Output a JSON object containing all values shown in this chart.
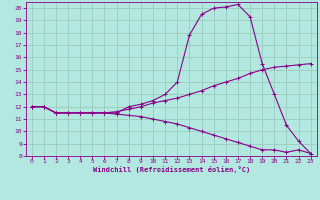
{
  "xlabel": "Windchill (Refroidissement éolien,°C)",
  "bg_color": "#b3e8e0",
  "line_color": "#880088",
  "grid_color": "#99ccbb",
  "xlim": [
    -0.5,
    23.5
  ],
  "ylim": [
    8,
    20.5
  ],
  "xticks": [
    0,
    1,
    2,
    3,
    4,
    5,
    6,
    7,
    8,
    9,
    10,
    11,
    12,
    13,
    14,
    15,
    16,
    17,
    18,
    19,
    20,
    21,
    22,
    23
  ],
  "yticks": [
    8,
    9,
    10,
    11,
    12,
    13,
    14,
    15,
    16,
    17,
    18,
    19,
    20
  ],
  "line1_x": [
    0,
    1,
    2,
    3,
    4,
    5,
    6,
    7,
    8,
    9,
    10,
    11,
    12,
    13,
    14,
    15,
    16,
    17,
    18,
    19,
    20,
    21,
    22,
    23
  ],
  "line1_y": [
    12,
    12,
    11.5,
    11.5,
    11.5,
    11.5,
    11.5,
    11.5,
    12,
    12.2,
    12.5,
    13,
    14,
    17.8,
    19.5,
    20,
    20.1,
    20.3,
    19.3,
    15.5,
    13.0,
    10.5,
    9.2,
    8.2
  ],
  "line2_x": [
    0,
    1,
    2,
    3,
    4,
    5,
    6,
    7,
    8,
    9,
    10,
    11,
    12,
    13,
    14,
    15,
    16,
    17,
    18,
    19,
    20,
    21,
    22,
    23
  ],
  "line2_y": [
    12,
    12,
    11.5,
    11.5,
    11.5,
    11.5,
    11.5,
    11.6,
    11.8,
    12.0,
    12.3,
    12.5,
    12.7,
    13.0,
    13.3,
    13.7,
    14.0,
    14.3,
    14.7,
    15.0,
    15.2,
    15.3,
    15.4,
    15.5
  ],
  "line3_x": [
    0,
    1,
    2,
    3,
    4,
    5,
    6,
    7,
    8,
    9,
    10,
    11,
    12,
    13,
    14,
    15,
    16,
    17,
    18,
    19,
    20,
    21,
    22,
    23
  ],
  "line3_y": [
    12,
    12,
    11.5,
    11.5,
    11.5,
    11.5,
    11.5,
    11.4,
    11.3,
    11.2,
    11.0,
    10.8,
    10.6,
    10.3,
    10.0,
    9.7,
    9.4,
    9.1,
    8.8,
    8.5,
    8.5,
    8.3,
    8.5,
    8.2
  ]
}
